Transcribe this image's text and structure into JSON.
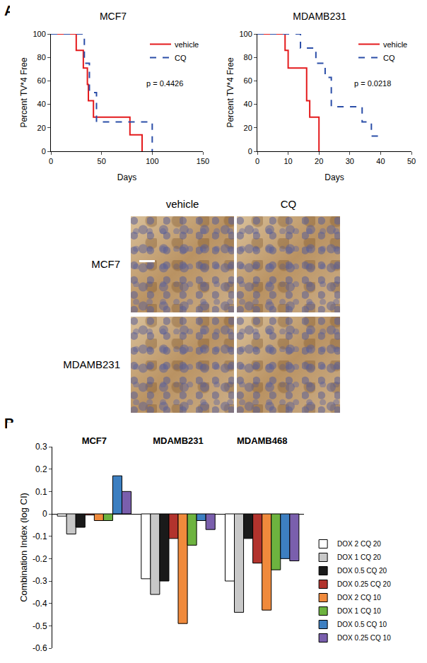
{
  "panel_labels": [
    "A",
    "B"
  ],
  "micrographs": {
    "columns": [
      "vehicle",
      "CQ"
    ],
    "rows": [
      "MCF7",
      "MDAMB231"
    ]
  },
  "chart_data": [
    {
      "type": "line",
      "title": "MCF7",
      "x_label": "Days",
      "y_label": "Percent TV*4 Free",
      "xlim": [
        0,
        150
      ],
      "xticks": [
        0,
        50,
        100,
        150
      ],
      "ylim": [
        0,
        100
      ],
      "yticks": [
        0,
        20,
        40,
        60,
        80,
        100
      ],
      "grid": false,
      "legend": "top right",
      "annotations": [
        "p = 0.4426"
      ],
      "series": [
        {
          "name": "vehicle",
          "color": "#e41a1c",
          "line_style": "solid",
          "x": [
            0,
            25,
            32,
            36,
            37,
            42,
            78,
            90
          ],
          "values": [
            100,
            86,
            71,
            57,
            43,
            29,
            14,
            0
          ]
        },
        {
          "name": "CQ",
          "color": "#2b4ea8",
          "line_style": "dashed",
          "x": [
            0,
            33,
            38,
            45,
            100
          ],
          "values": [
            100,
            75,
            50,
            25,
            0
          ]
        }
      ]
    },
    {
      "type": "line",
      "title": "MDAMB231",
      "x_label": "Days",
      "y_label": "Percent TV*4 Free",
      "xlim": [
        0,
        50
      ],
      "xticks": [
        0,
        10,
        20,
        30,
        40,
        50
      ],
      "ylim": [
        0,
        100
      ],
      "yticks": [
        0,
        20,
        40,
        60,
        80,
        100
      ],
      "grid": false,
      "legend": "top right",
      "annotations": [
        "p = 0.0218"
      ],
      "series": [
        {
          "name": "vehicle",
          "color": "#e41a1c",
          "line_style": "solid",
          "x": [
            0,
            9,
            10,
            16,
            17,
            20
          ],
          "values": [
            100,
            86,
            71,
            43,
            29,
            0
          ]
        },
        {
          "name": "CQ",
          "color": "#2b4ea8",
          "line_style": "dashed",
          "x": [
            0,
            14,
            19,
            22,
            24,
            34,
            37,
            41
          ],
          "values": [
            100,
            88,
            75,
            63,
            38,
            25,
            13,
            13
          ]
        }
      ]
    },
    {
      "type": "bar",
      "y_label": "Combination Index (log CI)",
      "categories": [
        "MCF7",
        "MDAMB231",
        "MDAMB468"
      ],
      "ylim": [
        -0.6,
        0.3
      ],
      "yticks": [
        -0.6,
        -0.5,
        -0.4,
        -0.3,
        -0.2,
        -0.1,
        0,
        0.1,
        0.2,
        0.3
      ],
      "grid": false,
      "legend": "bottom right",
      "series": [
        {
          "name": "DOX 2 CQ 20",
          "color": "#ffffff",
          "values": [
            -0.01,
            -0.29,
            -0.3
          ]
        },
        {
          "name": "DOX 1 CQ 20",
          "color": "#c8c8c8",
          "values": [
            -0.09,
            -0.36,
            -0.44
          ]
        },
        {
          "name": "DOX 0.5 CQ 20",
          "color": "#1a1a1a",
          "values": [
            -0.06,
            -0.3,
            -0.11
          ]
        },
        {
          "name": "DOX 0.25 CQ 20",
          "color": "#b2332d",
          "values": [
            -0.005,
            -0.11,
            -0.22
          ]
        },
        {
          "name": "DOX 2 CQ 10",
          "color": "#f08a3c",
          "values": [
            -0.03,
            -0.49,
            -0.43
          ]
        },
        {
          "name": "DOX 1 CQ 10",
          "color": "#6db33f",
          "values": [
            -0.03,
            -0.14,
            -0.25
          ]
        },
        {
          "name": "DOX 0.5 CQ 10",
          "color": "#3d7fc1",
          "values": [
            0.17,
            -0.03,
            -0.2
          ]
        },
        {
          "name": "DOX 0.25 CQ 10",
          "color": "#7a5fad",
          "values": [
            0.1,
            -0.07,
            -0.21
          ]
        }
      ]
    }
  ]
}
